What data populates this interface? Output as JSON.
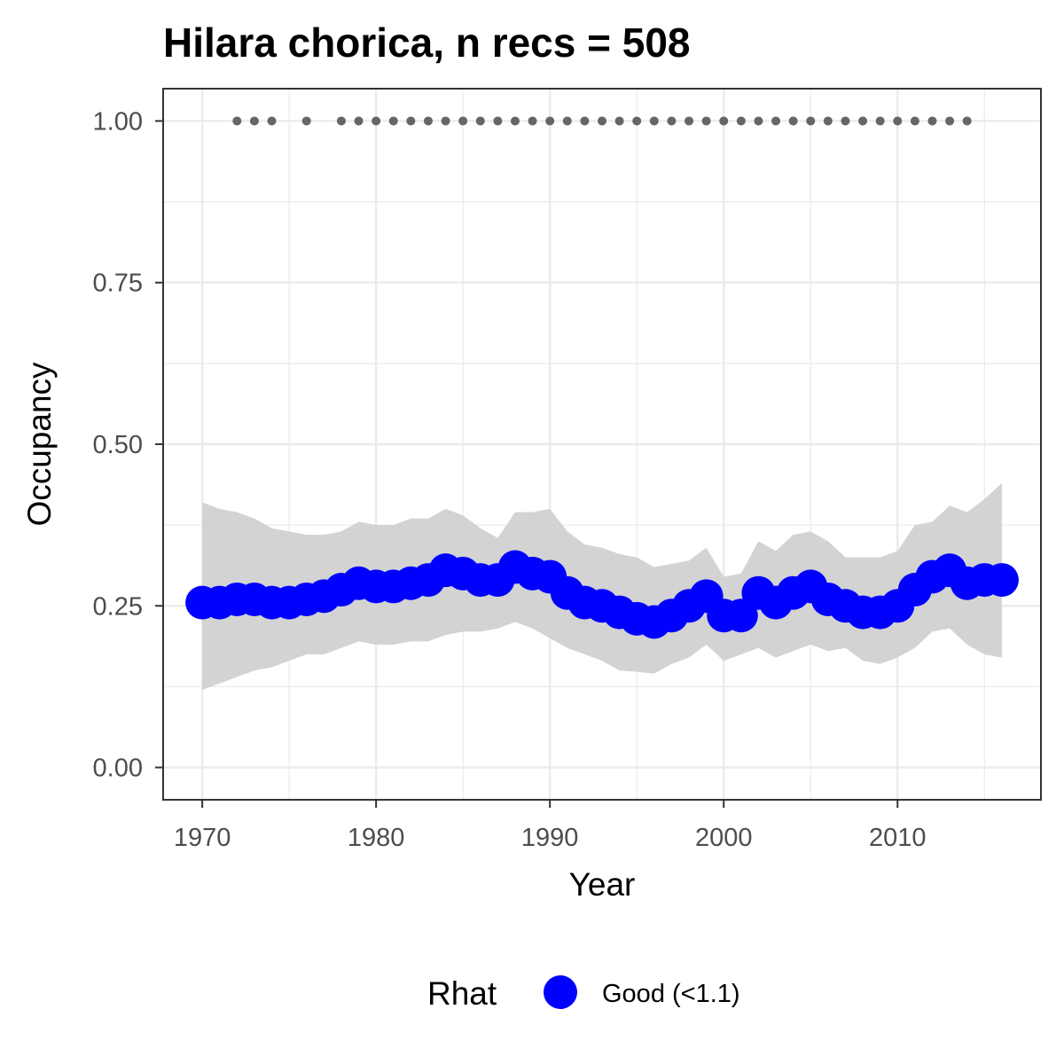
{
  "chart_data": {
    "type": "line",
    "title": "Hilara chorica, n recs = 508",
    "xlabel": "Year",
    "ylabel": "Occupancy",
    "xlim": [
      1967.75,
      2018.25
    ],
    "ylim": [
      -0.05,
      1.05
    ],
    "x_ticks": [
      1970,
      1980,
      1990,
      2000,
      2010
    ],
    "x_tick_labels": [
      "1970",
      "1980",
      "1990",
      "2000",
      "2010"
    ],
    "y_ticks": [
      0,
      0.25,
      0.5,
      0.75,
      1.0
    ],
    "y_tick_labels": [
      "0.00",
      "0.25",
      "0.50",
      "0.75",
      "1.00"
    ],
    "grid": true,
    "colors": {
      "series": "#0000ff",
      "ribbon": "#d3d3d3",
      "records": "#666666",
      "panel_border": "#333333",
      "grid": "#ebebeb"
    },
    "series": [
      {
        "name": "Good (<1.1)",
        "x": [
          1970,
          1971,
          1972,
          1973,
          1974,
          1975,
          1976,
          1977,
          1978,
          1979,
          1980,
          1981,
          1982,
          1983,
          1984,
          1985,
          1986,
          1987,
          1988,
          1989,
          1990,
          1991,
          1992,
          1993,
          1994,
          1995,
          1996,
          1997,
          1998,
          1999,
          2000,
          2001,
          2002,
          2003,
          2004,
          2005,
          2006,
          2007,
          2008,
          2009,
          2010,
          2011,
          2012,
          2013,
          2014,
          2015,
          2016
        ],
        "y": [
          0.255,
          0.255,
          0.26,
          0.26,
          0.255,
          0.255,
          0.26,
          0.265,
          0.275,
          0.285,
          0.28,
          0.28,
          0.285,
          0.29,
          0.305,
          0.3,
          0.29,
          0.29,
          0.31,
          0.3,
          0.295,
          0.27,
          0.255,
          0.25,
          0.24,
          0.23,
          0.225,
          0.235,
          0.25,
          0.265,
          0.235,
          0.235,
          0.27,
          0.255,
          0.27,
          0.28,
          0.26,
          0.25,
          0.24,
          0.24,
          0.25,
          0.275,
          0.295,
          0.305,
          0.285,
          0.29,
          0.29
        ],
        "lower": [
          0.12,
          0.13,
          0.14,
          0.15,
          0.155,
          0.165,
          0.175,
          0.175,
          0.185,
          0.195,
          0.19,
          0.19,
          0.195,
          0.195,
          0.205,
          0.21,
          0.21,
          0.215,
          0.225,
          0.215,
          0.2,
          0.185,
          0.175,
          0.165,
          0.15,
          0.148,
          0.145,
          0.16,
          0.17,
          0.19,
          0.165,
          0.175,
          0.185,
          0.17,
          0.18,
          0.19,
          0.18,
          0.185,
          0.165,
          0.16,
          0.17,
          0.185,
          0.21,
          0.215,
          0.19,
          0.175,
          0.17
        ],
        "upper": [
          0.41,
          0.4,
          0.395,
          0.385,
          0.37,
          0.365,
          0.36,
          0.36,
          0.365,
          0.38,
          0.375,
          0.375,
          0.385,
          0.385,
          0.4,
          0.39,
          0.37,
          0.355,
          0.395,
          0.395,
          0.4,
          0.365,
          0.345,
          0.34,
          0.33,
          0.325,
          0.31,
          0.315,
          0.32,
          0.34,
          0.295,
          0.3,
          0.35,
          0.335,
          0.36,
          0.365,
          0.35,
          0.325,
          0.325,
          0.325,
          0.335,
          0.375,
          0.38,
          0.405,
          0.395,
          0.415,
          0.44
        ]
      }
    ],
    "records": {
      "x": [
        1972,
        1973,
        1974,
        1976,
        1978,
        1979,
        1980,
        1981,
        1982,
        1983,
        1984,
        1985,
        1986,
        1987,
        1988,
        1989,
        1990,
        1991,
        1992,
        1993,
        1994,
        1995,
        1996,
        1997,
        1998,
        1999,
        2000,
        2001,
        2002,
        2003,
        2004,
        2005,
        2006,
        2007,
        2008,
        2009,
        2010,
        2011,
        2012,
        2013,
        2014
      ],
      "y": 1.0
    },
    "legend": {
      "position": "bottom",
      "title": "Rhat",
      "label": "Good (<1.1)"
    }
  }
}
